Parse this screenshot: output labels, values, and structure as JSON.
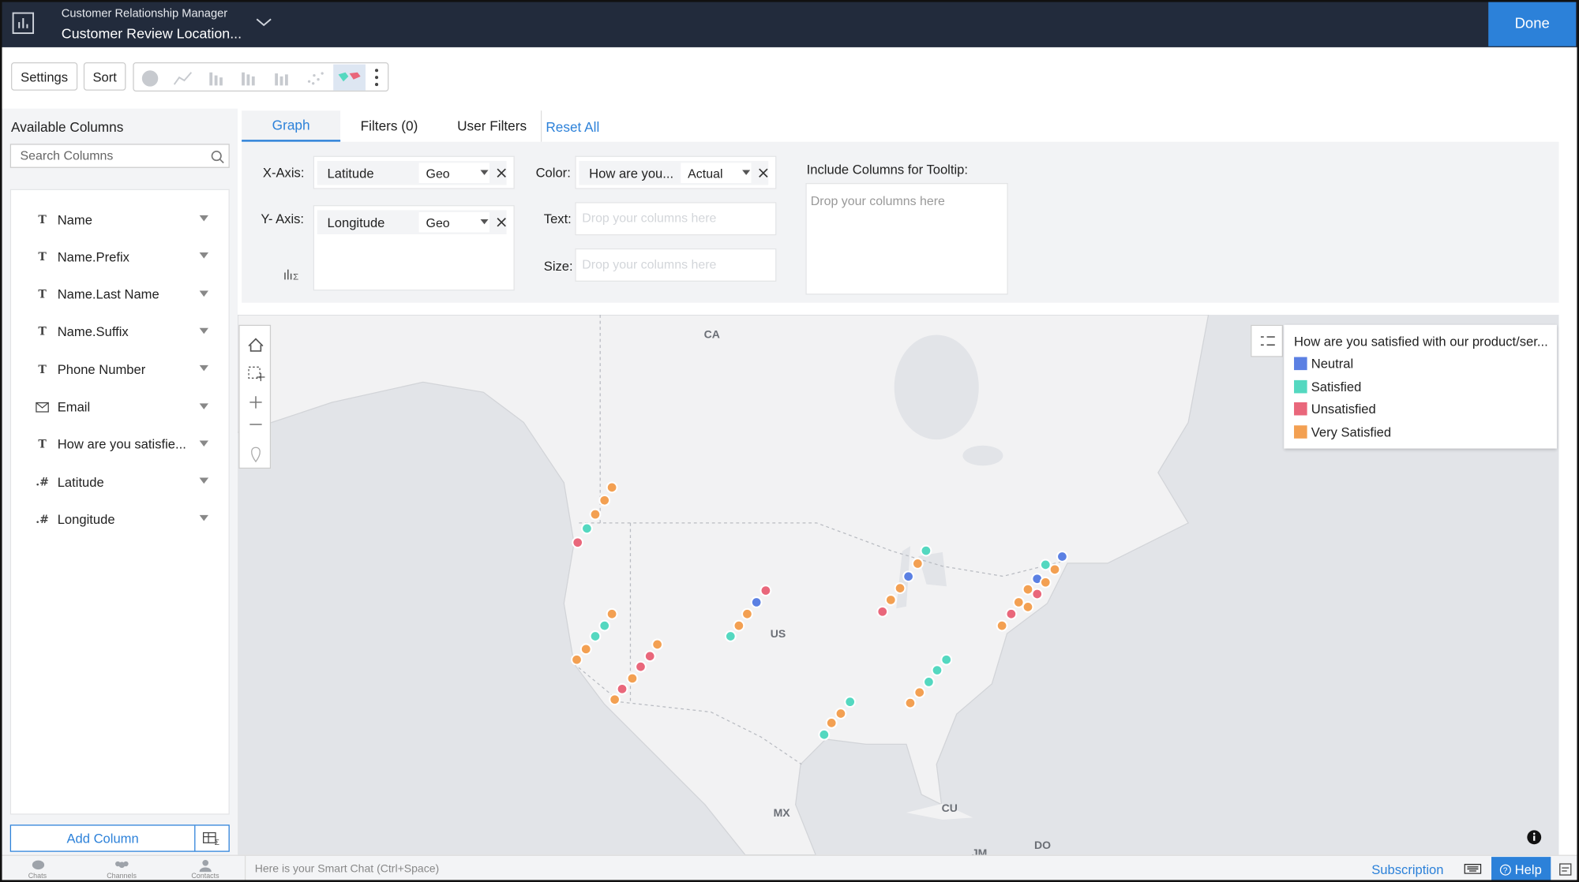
{
  "header": {
    "app_name": "Customer Relationship Manager",
    "title": "Customer Review Location...",
    "done": "Done"
  },
  "toolbar": {
    "settings": "Settings",
    "sort": "Sort"
  },
  "sidebar": {
    "heading": "Available Columns",
    "search_placeholder": "Search Columns",
    "columns": [
      {
        "icon": "T",
        "name": "Name"
      },
      {
        "icon": "T",
        "name": "Name.Prefix"
      },
      {
        "icon": "T",
        "name": "Name.Last Name"
      },
      {
        "icon": "T",
        "name": "Name.Suffix"
      },
      {
        "icon": "T",
        "name": "Phone Number"
      },
      {
        "name": "Email"
      },
      {
        "icon": "T",
        "name": "How are you satisfie..."
      },
      {
        "icon": ".#",
        "name": "Latitude"
      },
      {
        "icon": ".#",
        "name": "Longitude"
      }
    ],
    "add_column": "Add Column"
  },
  "tabs": {
    "graph": "Graph",
    "filters": "Filters (0)",
    "user_filters": "User Filters",
    "reset_all": "Reset All"
  },
  "config": {
    "x_label": "X-Axis:",
    "x_value": "Latitude",
    "x_func": "Geo",
    "y_label": "Y- Axis:",
    "y_value": "Longitude",
    "y_func": "Geo",
    "color_label": "Color:",
    "color_value": "How are you...",
    "color_func": "Actual",
    "text_label": "Text:",
    "size_label": "Size:",
    "drop_placeholder": "Drop your columns here",
    "tooltip_label": "Include Columns for Tooltip:",
    "tooltip_placeholder": "Drop your columns here"
  },
  "map": {
    "legend_title": "How are you satisfied with our product/ser...",
    "labels": [
      "CA",
      "US",
      "MX",
      "CU",
      "DO",
      "JM"
    ],
    "series": [
      {
        "name": "Neutral",
        "color": "#5b80e3",
        "points": [
          [
            41.3,
            -104.0
          ],
          [
            43.5,
            -87.6
          ],
          [
            45.2,
            -71.0
          ],
          [
            43.3,
            -73.7
          ]
        ]
      },
      {
        "name": "Satisfied",
        "color": "#54d8c0",
        "points": [
          [
            47.6,
            -122.3
          ],
          [
            39.3,
            -120.4
          ],
          [
            38.4,
            -121.4
          ],
          [
            38.4,
            -106.8
          ],
          [
            45.7,
            -85.7
          ],
          [
            44.5,
            -72.8
          ],
          [
            36.4,
            -83.5
          ],
          [
            35.5,
            -84.5
          ],
          [
            34.5,
            -85.4
          ],
          [
            32.8,
            -93.9
          ],
          [
            30.0,
            -96.7
          ]
        ]
      },
      {
        "name": "Unsatisfied",
        "color": "#e9677b",
        "points": [
          [
            46.4,
            -123.3
          ],
          [
            36.7,
            -115.5
          ],
          [
            35.8,
            -116.5
          ],
          [
            33.9,
            -118.5
          ],
          [
            42.3,
            -103.0
          ],
          [
            40.5,
            -90.4
          ],
          [
            42.0,
            -73.7
          ],
          [
            40.3,
            -76.5
          ]
        ]
      },
      {
        "name": "Very Satisfied",
        "color": "#f3a052",
        "points": [
          [
            51.1,
            -119.6
          ],
          [
            50.0,
            -120.4
          ],
          [
            48.8,
            -121.4
          ],
          [
            40.3,
            -119.6
          ],
          [
            37.3,
            -122.4
          ],
          [
            36.4,
            -123.4
          ],
          [
            37.7,
            -114.7
          ],
          [
            34.8,
            -117.4
          ],
          [
            33.0,
            -119.3
          ],
          [
            40.3,
            -105.0
          ],
          [
            39.3,
            -105.9
          ],
          [
            44.6,
            -86.6
          ],
          [
            42.5,
            -88.5
          ],
          [
            41.5,
            -89.5
          ],
          [
            44.1,
            -71.8
          ],
          [
            43.0,
            -72.8
          ],
          [
            42.4,
            -74.7
          ],
          [
            41.3,
            -75.7
          ],
          [
            40.9,
            -74.7
          ],
          [
            39.3,
            -77.5
          ],
          [
            33.6,
            -86.4
          ],
          [
            32.7,
            -87.4
          ],
          [
            31.8,
            -94.9
          ],
          [
            31.0,
            -95.9
          ]
        ]
      }
    ]
  },
  "footer": {
    "chat_placeholder": "Here is your Smart Chat (Ctrl+Space)",
    "chats": "Chats",
    "channels": "Channels",
    "contacts": "Contacts",
    "subscription": "Subscription",
    "help": "Help"
  }
}
